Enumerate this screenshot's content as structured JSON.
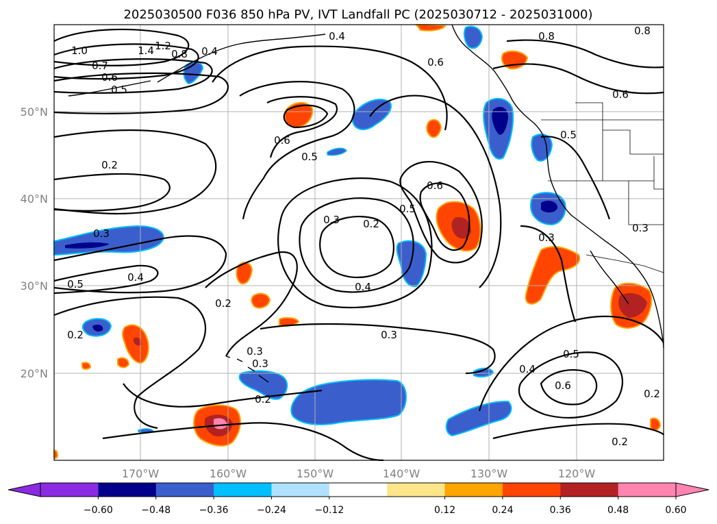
{
  "title": "2025030500 F036 850 hPa PV, IVT Landfall PC (2025030712 - 2025031000)",
  "lat_ticks": [
    "50°N",
    "40°N",
    "30°N",
    "20°N"
  ],
  "lon_ticks": [
    "170°W",
    "160°W",
    "150°W",
    "140°W",
    "130°W",
    "120°W"
  ],
  "colorbar": {
    "tick_labels": [
      "−0.60",
      "−0.48",
      "−0.36",
      "−0.24",
      "−0.12",
      "0.12",
      "0.24",
      "0.36",
      "0.48",
      "0.60"
    ],
    "colors": [
      "#8a2be2",
      "#00008b",
      "#3a5fcd",
      "#00bfff",
      "#b0e2ff",
      "#ffffff",
      "#fde68a",
      "#ffa500",
      "#ff4500",
      "#b22222",
      "#ff85b0"
    ]
  },
  "contour_labels": [
    "1.0",
    "1.4",
    "1.2",
    "0.8",
    "0.4",
    "0.7",
    "0.6",
    "0.5",
    "0.4",
    "0.6",
    "0.8",
    "0.8",
    "0.6",
    "0.5",
    "0.6",
    "0.5",
    "0.2",
    "0.6",
    "0.5",
    "0.3",
    "0.2",
    "0.3",
    "0.3",
    "0.4",
    "0.5",
    "0.2",
    "0.4",
    "0.3",
    "0.2",
    "0.3",
    "0.3",
    "0.2",
    "0.4",
    "0.5",
    "0.6",
    "0.2",
    "0.2",
    "0.3"
  ],
  "fill_colors": {
    "navy": "#00008b",
    "blue": "#3a5fcd",
    "cyan": "#00bfff",
    "lightblue": "#b0e2ff",
    "yellow": "#fde68a",
    "orange": "#ffa500",
    "redorange": "#ff4500",
    "darkred": "#b22222",
    "pink": "#ff85b0"
  }
}
